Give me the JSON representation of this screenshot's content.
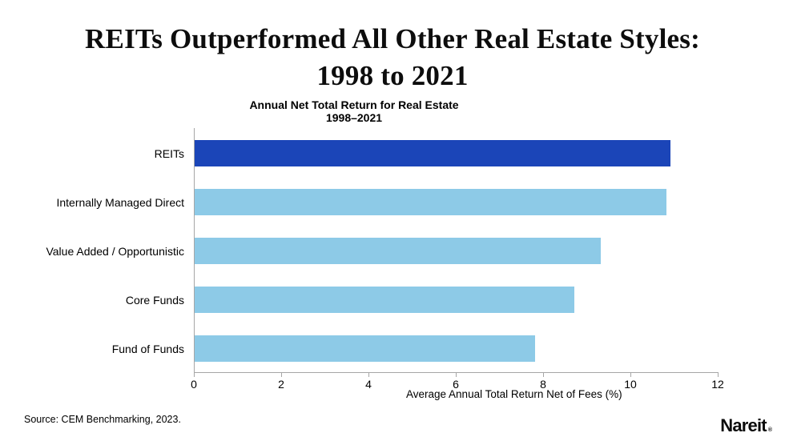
{
  "header": {
    "title_line1": "REITs Outperformed All Other Real Estate Styles:",
    "title_line2": "1998 to 2021"
  },
  "chart_data": {
    "type": "bar",
    "orientation": "horizontal",
    "title": "Annual Net Total Return for Real Estate",
    "subtitle": "1998–2021",
    "categories": [
      "REITs",
      "Internally Managed Direct",
      "Value Added / Opportunistic",
      "Core Funds",
      "Fund of Funds"
    ],
    "values": [
      10.9,
      10.8,
      9.3,
      8.7,
      7.8
    ],
    "xlabel": "Average Annual Total Return Net of Fees (%)",
    "xlim": [
      0,
      12
    ],
    "xticks": [
      0,
      2,
      4,
      6,
      8,
      10,
      12
    ],
    "grid": false,
    "legend": false,
    "bar_colors": [
      "#1b45b8",
      "#8dcae7",
      "#8dcae7",
      "#8dcae7",
      "#8dcae7"
    ]
  },
  "colors": {
    "highlight_bar": "#1b45b8",
    "base_bar": "#8dcae7",
    "axis_line": "#a6a6a6",
    "text": "#000000"
  },
  "footer": {
    "source": "Source: CEM Benchmarking, 2023.",
    "logo_text": "Nareit",
    "logo_mark": "®"
  }
}
